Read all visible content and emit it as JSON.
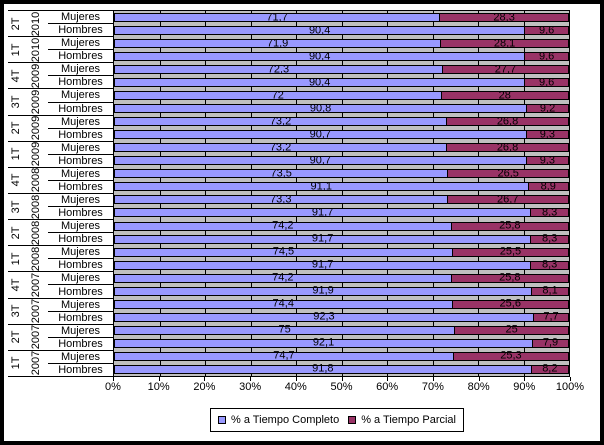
{
  "chart_data": {
    "type": "bar",
    "orientation": "horizontal",
    "stacked": true,
    "grid": true,
    "plot_bg": "#C0C0C0",
    "xlim": [
      0,
      100
    ],
    "x_ticks": [
      "0%",
      "10%",
      "20%",
      "30%",
      "40%",
      "50%",
      "60%",
      "70%",
      "80%",
      "90%",
      "100%"
    ],
    "series": [
      {
        "name": "% a Tiempo Completo",
        "color": "#9999FF"
      },
      {
        "name": "% a Tiempo Parcial",
        "color": "#993366"
      }
    ],
    "legend": {
      "position": "bottom",
      "entries": [
        {
          "label": "% a Tiempo Completo",
          "color": "#9999FF"
        },
        {
          "label": "% a Tiempo Parcial",
          "color": "#993366"
        }
      ]
    },
    "groups": [
      {
        "quarter": "2T",
        "year": "2010",
        "bars": [
          {
            "label": "Mujeres",
            "completo": 71.7,
            "parcial": 28.3,
            "completo_text": "71,7",
            "parcial_text": "28,3"
          },
          {
            "label": "Hombres",
            "completo": 90.4,
            "parcial": 9.6,
            "completo_text": "90,4",
            "parcial_text": "9,6"
          }
        ]
      },
      {
        "quarter": "1T",
        "year": "2010",
        "bars": [
          {
            "label": "Mujeres",
            "completo": 71.9,
            "parcial": 28.1,
            "completo_text": "71,9",
            "parcial_text": "28,1"
          },
          {
            "label": "Hombres",
            "completo": 90.4,
            "parcial": 9.6,
            "completo_text": "90,4",
            "parcial_text": "9,6"
          }
        ]
      },
      {
        "quarter": "4T",
        "year": "2009",
        "bars": [
          {
            "label": "Mujeres",
            "completo": 72.3,
            "parcial": 27.7,
            "completo_text": "72,3",
            "parcial_text": "27,7"
          },
          {
            "label": "Hombres",
            "completo": 90.4,
            "parcial": 9.6,
            "completo_text": "90,4",
            "parcial_text": "9,6"
          }
        ]
      },
      {
        "quarter": "3T",
        "year": "2009",
        "bars": [
          {
            "label": "Mujeres",
            "completo": 72,
            "parcial": 28,
            "completo_text": "72",
            "parcial_text": "28"
          },
          {
            "label": "Hombres",
            "completo": 90.8,
            "parcial": 9.2,
            "completo_text": "90,8",
            "parcial_text": "9,2"
          }
        ]
      },
      {
        "quarter": "2T",
        "year": "2009",
        "bars": [
          {
            "label": "Mujeres",
            "completo": 73.2,
            "parcial": 26.8,
            "completo_text": "73,2",
            "parcial_text": "26,8"
          },
          {
            "label": "Hombres",
            "completo": 90.7,
            "parcial": 9.3,
            "completo_text": "90,7",
            "parcial_text": "9,3"
          }
        ]
      },
      {
        "quarter": "1T",
        "year": "2009",
        "bars": [
          {
            "label": "Mujeres",
            "completo": 73.2,
            "parcial": 26.8,
            "completo_text": "73,2",
            "parcial_text": "26,8"
          },
          {
            "label": "Hombres",
            "completo": 90.7,
            "parcial": 9.3,
            "completo_text": "90,7",
            "parcial_text": "9,3"
          }
        ]
      },
      {
        "quarter": "4T",
        "year": "2008",
        "bars": [
          {
            "label": "Mujeres",
            "completo": 73.5,
            "parcial": 26.5,
            "completo_text": "73,5",
            "parcial_text": "26,5"
          },
          {
            "label": "Hombres",
            "completo": 91.1,
            "parcial": 8.9,
            "completo_text": "91,1",
            "parcial_text": "8,9"
          }
        ]
      },
      {
        "quarter": "3T",
        "year": "2008",
        "bars": [
          {
            "label": "Mujeres",
            "completo": 73.3,
            "parcial": 26.7,
            "completo_text": "73,3",
            "parcial_text": "26,7"
          },
          {
            "label": "Hombres",
            "completo": 91.7,
            "parcial": 8.3,
            "completo_text": "91,7",
            "parcial_text": "8,3"
          }
        ]
      },
      {
        "quarter": "2T",
        "year": "2008",
        "bars": [
          {
            "label": "Mujeres",
            "completo": 74.2,
            "parcial": 25.8,
            "completo_text": "74,2",
            "parcial_text": "25,8"
          },
          {
            "label": "Hombres",
            "completo": 91.7,
            "parcial": 8.3,
            "completo_text": "91,7",
            "parcial_text": "8,3"
          }
        ]
      },
      {
        "quarter": "1T",
        "year": "2008",
        "bars": [
          {
            "label": "Mujeres",
            "completo": 74.5,
            "parcial": 25.5,
            "completo_text": "74,5",
            "parcial_text": "25,5"
          },
          {
            "label": "Hombres",
            "completo": 91.7,
            "parcial": 8.3,
            "completo_text": "91,7",
            "parcial_text": "8,3"
          }
        ]
      },
      {
        "quarter": "4T",
        "year": "2007",
        "bars": [
          {
            "label": "Mujeres",
            "completo": 74.2,
            "parcial": 25.8,
            "completo_text": "74,2",
            "parcial_text": "25,8"
          },
          {
            "label": "Hombres",
            "completo": 91.9,
            "parcial": 8.1,
            "completo_text": "91,9",
            "parcial_text": "8,1"
          }
        ]
      },
      {
        "quarter": "3T",
        "year": "2007",
        "bars": [
          {
            "label": "Mujeres",
            "completo": 74.4,
            "parcial": 25.6,
            "completo_text": "74,4",
            "parcial_text": "25,6"
          },
          {
            "label": "Hombres",
            "completo": 92.3,
            "parcial": 7.7,
            "completo_text": "92,3",
            "parcial_text": "7,7"
          }
        ]
      },
      {
        "quarter": "2T",
        "year": "2007",
        "bars": [
          {
            "label": "Mujeres",
            "completo": 75,
            "parcial": 25,
            "completo_text": "75",
            "parcial_text": "25"
          },
          {
            "label": "Hombres",
            "completo": 92.1,
            "parcial": 7.9,
            "completo_text": "92,1",
            "parcial_text": "7,9"
          }
        ]
      },
      {
        "quarter": "1T",
        "year": "2007",
        "bars": [
          {
            "label": "Mujeres",
            "completo": 74.7,
            "parcial": 25.3,
            "completo_text": "74,7",
            "parcial_text": "25,3"
          },
          {
            "label": "Hombres",
            "completo": 91.8,
            "parcial": 8.2,
            "completo_text": "91,8",
            "parcial_text": "8,2"
          }
        ]
      }
    ]
  }
}
